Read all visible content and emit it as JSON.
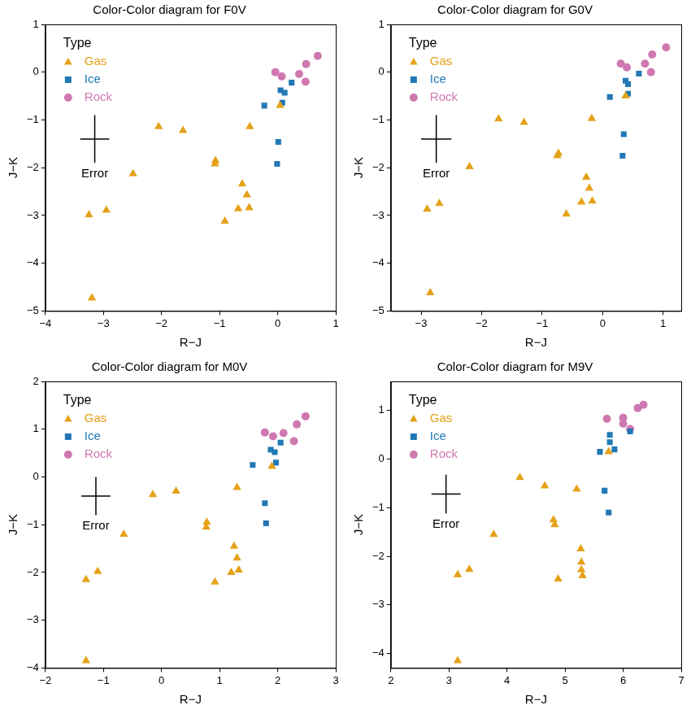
{
  "chart_data": [
    {
      "type": "scatter",
      "title": "Color-Color diagram for F0V",
      "x_label": "R−J",
      "y_label": "J−K",
      "xlim": [
        -4,
        1
      ],
      "ylim": [
        -5,
        1
      ],
      "xticks": [
        {
          "value": -4,
          "label": "−4"
        },
        {
          "value": -3,
          "label": "−3"
        },
        {
          "value": -2,
          "label": "−2"
        },
        {
          "value": -1,
          "label": "−1"
        },
        0,
        1
      ],
      "yticks": [
        {
          "value": -5,
          "label": "−5"
        },
        {
          "value": -4,
          "label": "−4"
        },
        {
          "value": -3,
          "label": "−3"
        },
        {
          "value": -2,
          "label": "−2"
        },
        {
          "value": -1,
          "label": "−1"
        },
        0,
        1
      ],
      "grid": false,
      "legend": "upper left",
      "legend_title": "Type",
      "error_bar": {
        "label": "Error",
        "x": -3.15,
        "y": -1.4,
        "x_error": 0.25,
        "y_error": 0.5
      },
      "series": [
        {
          "name": "Gas",
          "color": "#e5a118",
          "marker": "triangle",
          "x": [
            -3.25,
            -2.95,
            -3.2,
            -2.49,
            -2.05,
            -1.63,
            -1.07,
            -1.08,
            -0.91,
            -0.68,
            -0.61,
            -0.53,
            -0.49,
            -0.48,
            0.04
          ],
          "values": [
            -2.99,
            -2.89,
            -4.73,
            -2.13,
            -1.14,
            -1.22,
            -1.85,
            -1.92,
            -3.12,
            -2.86,
            -2.34,
            -2.57,
            -2.84,
            -1.14,
            -0.7
          ]
        },
        {
          "name": "Ice",
          "color": "#2178b5",
          "marker": "square",
          "x": [
            -0.23,
            0.01,
            -0.01,
            0.05,
            0.12,
            0.08,
            0.24
          ],
          "values": [
            -0.7,
            -1.46,
            -1.92,
            -0.38,
            -0.43,
            -0.64,
            -0.22
          ]
        },
        {
          "name": "Rock",
          "color": "#cf78b0",
          "marker": "circle",
          "x": [
            -0.04,
            0.07,
            0.37,
            0.48,
            0.49,
            0.69
          ],
          "values": [
            0.0,
            -0.09,
            -0.04,
            -0.2,
            0.17,
            0.34
          ]
        }
      ]
    },
    {
      "type": "scatter",
      "title": "Color-Color diagram for G0V",
      "x_label": "R−J",
      "y_label": "J−K",
      "xlim": [
        -3.5,
        1.3
      ],
      "ylim": [
        -5,
        1
      ],
      "xticks": [
        {
          "value": -3,
          "label": "−3"
        },
        {
          "value": -2,
          "label": "−2"
        },
        {
          "value": -1,
          "label": "−1"
        },
        0,
        1
      ],
      "yticks": [
        {
          "value": -5,
          "label": "−5"
        },
        {
          "value": -4,
          "label": "−4"
        },
        {
          "value": -3,
          "label": "−3"
        },
        {
          "value": -2,
          "label": "−2"
        },
        {
          "value": -1,
          "label": "−1"
        },
        0,
        1
      ],
      "grid": false,
      "legend": "upper left",
      "legend_title": "Type",
      "error_bar": {
        "label": "Error",
        "x": -2.75,
        "y": -1.4,
        "x_error": 0.25,
        "y_error": 0.5
      },
      "series": [
        {
          "name": "Gas",
          "color": "#e5a118",
          "marker": "triangle",
          "x": [
            -2.9,
            -2.7,
            -2.85,
            -2.2,
            -1.72,
            -1.3,
            -0.73,
            -0.75,
            -0.6,
            -0.35,
            -0.27,
            -0.22,
            -0.17,
            -0.18,
            0.38
          ],
          "values": [
            -2.87,
            -2.75,
            -4.62,
            -1.98,
            -0.98,
            -1.05,
            -1.7,
            -1.75,
            -2.97,
            -2.72,
            -2.2,
            -2.43,
            -2.7,
            -0.97,
            -0.5
          ]
        },
        {
          "name": "Ice",
          "color": "#2178b5",
          "marker": "square",
          "x": [
            0.12,
            0.35,
            0.33,
            0.38,
            0.42,
            0.42,
            0.6
          ],
          "values": [
            -0.52,
            -1.3,
            -1.75,
            -0.18,
            -0.25,
            -0.45,
            -0.03
          ]
        },
        {
          "name": "Rock",
          "color": "#cf78b0",
          "marker": "circle",
          "x": [
            0.3,
            0.4,
            0.7,
            0.8,
            0.82,
            1.05
          ],
          "values": [
            0.18,
            0.1,
            0.18,
            0.0,
            0.37,
            0.52
          ]
        }
      ]
    },
    {
      "type": "scatter",
      "title": "Color-Color diagram for M0V",
      "x_label": "R−J",
      "y_label": "J−K",
      "xlim": [
        -2,
        3
      ],
      "ylim": [
        -4,
        2
      ],
      "xticks": [
        {
          "value": -2,
          "label": "−2"
        },
        {
          "value": -1,
          "label": "−1"
        },
        0,
        1,
        2,
        3
      ],
      "yticks": [
        {
          "value": -4,
          "label": "−4"
        },
        {
          "value": -3,
          "label": "−3"
        },
        {
          "value": -2,
          "label": "−2"
        },
        {
          "value": -1,
          "label": "−1"
        },
        0,
        1,
        2
      ],
      "grid": false,
      "legend": "upper left",
      "legend_title": "Type",
      "error_bar": {
        "label": "Error",
        "x": -1.13,
        "y": -0.4,
        "x_error": 0.25,
        "y_error": 0.4
      },
      "series": [
        {
          "name": "Gas",
          "color": "#e5a118",
          "marker": "triangle",
          "x": [
            -1.3,
            -1.1,
            -1.3,
            -0.65,
            -0.15,
            0.25,
            0.78,
            0.77,
            0.92,
            1.2,
            1.25,
            1.3,
            1.33,
            1.3,
            1.9
          ],
          "values": [
            -2.15,
            -1.98,
            -3.85,
            -1.2,
            -0.37,
            -0.3,
            -0.95,
            -1.05,
            -2.2,
            -2.0,
            -1.45,
            -1.7,
            -1.95,
            -0.22,
            0.22
          ]
        },
        {
          "name": "Ice",
          "color": "#2178b5",
          "marker": "square",
          "x": [
            1.57,
            1.78,
            1.8,
            1.88,
            1.95,
            1.97,
            2.05
          ],
          "values": [
            0.25,
            -0.55,
            -0.97,
            0.57,
            0.52,
            0.3,
            0.72
          ]
        },
        {
          "name": "Rock",
          "color": "#cf78b0",
          "marker": "circle",
          "x": [
            1.78,
            1.92,
            2.1,
            2.28,
            2.33,
            2.48
          ],
          "values": [
            0.93,
            0.85,
            0.92,
            0.75,
            1.1,
            1.27
          ]
        }
      ]
    },
    {
      "type": "scatter",
      "title": "Color-Color diagram for M9V",
      "x_label": "R−J",
      "y_label": "J−K",
      "xlim": [
        2,
        7
      ],
      "ylim": [
        -4.3,
        1.6
      ],
      "xticks": [
        2,
        3,
        4,
        5,
        6,
        7
      ],
      "yticks": [
        {
          "value": -4,
          "label": "−4"
        },
        {
          "value": -3,
          "label": "−3"
        },
        {
          "value": -2,
          "label": "−2"
        },
        {
          "value": -1,
          "label": "−1"
        },
        0,
        1
      ],
      "grid": false,
      "legend": "upper left",
      "legend_title": "Type",
      "error_bar": {
        "label": "Error",
        "x": 2.95,
        "y": -0.72,
        "x_error": 0.25,
        "y_error": 0.4
      },
      "series": [
        {
          "name": "Gas",
          "color": "#e5a118",
          "marker": "triangle",
          "x": [
            3.15,
            3.35,
            3.15,
            3.77,
            4.22,
            4.65,
            4.8,
            4.82,
            4.88,
            5.27,
            5.28,
            5.28,
            5.3,
            5.2,
            5.75
          ],
          "values": [
            -2.38,
            -2.27,
            -4.15,
            -1.55,
            -0.38,
            -0.55,
            -1.25,
            -1.35,
            -2.47,
            -1.85,
            -2.12,
            -2.28,
            -2.4,
            -0.62,
            0.15
          ]
        },
        {
          "name": "Ice",
          "color": "#2178b5",
          "marker": "square",
          "x": [
            5.6,
            5.68,
            5.75,
            5.77,
            5.77,
            5.85,
            6.12
          ],
          "values": [
            0.15,
            -0.65,
            -1.1,
            0.5,
            0.35,
            0.2,
            0.57
          ]
        },
        {
          "name": "Rock",
          "color": "#cf78b0",
          "marker": "circle",
          "x": [
            5.72,
            6.0,
            6.0,
            6.12,
            6.25,
            6.35
          ],
          "values": [
            0.83,
            0.85,
            0.73,
            0.62,
            1.05,
            1.12
          ]
        }
      ]
    }
  ]
}
